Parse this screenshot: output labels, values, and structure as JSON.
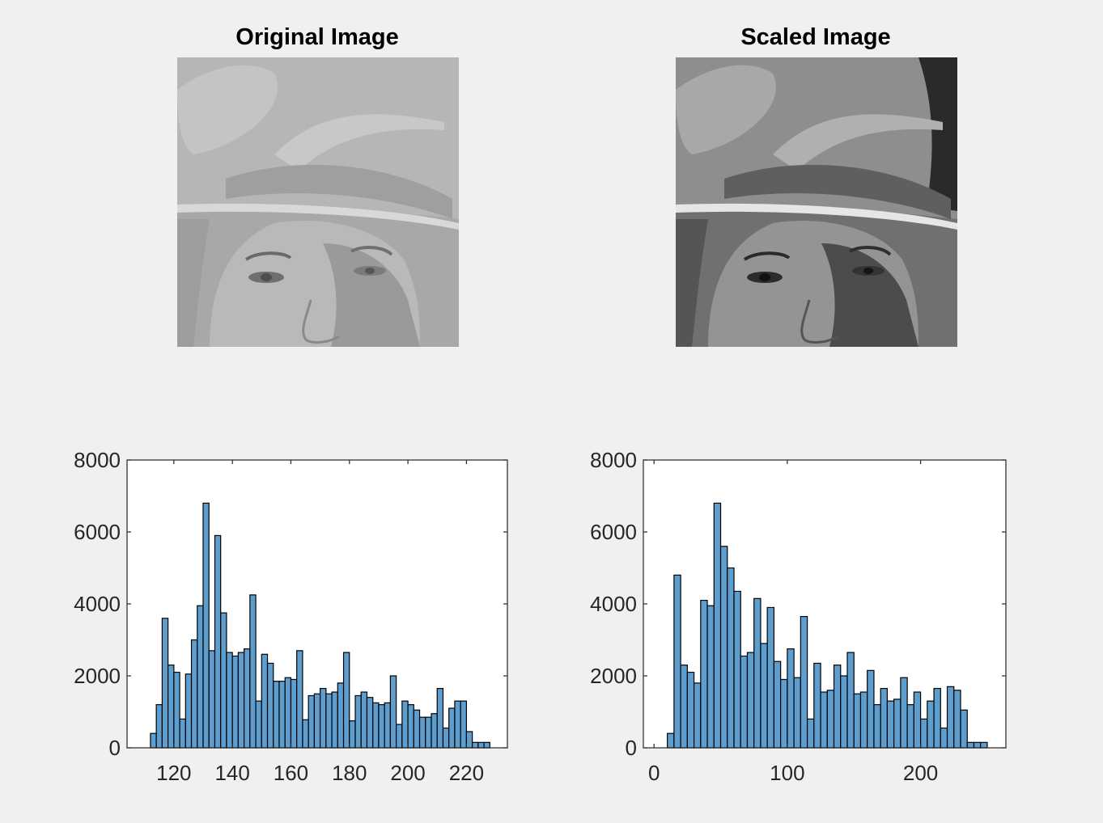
{
  "panels": {
    "original_title": "Original Image",
    "scaled_title": "Scaled Image"
  },
  "chart_data": [
    {
      "type": "bar",
      "ylim": [
        0,
        8000
      ],
      "yticks": [
        0,
        2000,
        4000,
        6000,
        8000
      ],
      "xlim": [
        104,
        234
      ],
      "xticks": [
        120,
        140,
        160,
        180,
        200,
        220
      ],
      "bin_start": 112,
      "bin_width": 2,
      "values": [
        400,
        1200,
        3600,
        2300,
        2100,
        800,
        2050,
        3000,
        3950,
        6800,
        2700,
        5900,
        3750,
        2650,
        2550,
        2650,
        2750,
        4250,
        1300,
        2600,
        2350,
        1850,
        1850,
        1950,
        1900,
        2700,
        780,
        1450,
        1500,
        1650,
        1500,
        1550,
        1800,
        2650,
        750,
        1450,
        1550,
        1400,
        1250,
        1200,
        1250,
        2000,
        650,
        1300,
        1200,
        1050,
        850,
        850,
        950,
        1650,
        550,
        1100,
        1300,
        1300,
        450,
        150,
        150,
        150
      ],
      "bar_color": "#5d9ecf"
    },
    {
      "type": "bar",
      "ylim": [
        0,
        8000
      ],
      "yticks": [
        0,
        2000,
        4000,
        6000,
        8000
      ],
      "xlim": [
        -8,
        264
      ],
      "xticks": [
        0,
        100,
        200
      ],
      "bin_start": 10,
      "bin_width": 5,
      "values": [
        400,
        4800,
        2300,
        2100,
        1800,
        4100,
        3950,
        6800,
        5600,
        5000,
        4350,
        2550,
        2650,
        4150,
        2900,
        3900,
        2400,
        1900,
        2750,
        1950,
        3650,
        800,
        2350,
        1550,
        1600,
        2300,
        2000,
        2650,
        1500,
        1550,
        2150,
        1200,
        1650,
        1300,
        1350,
        1950,
        1200,
        1550,
        800,
        1300,
        1650,
        550,
        1700,
        1600,
        1050,
        150,
        150,
        150
      ],
      "bar_color": "#5d9ecf"
    }
  ]
}
